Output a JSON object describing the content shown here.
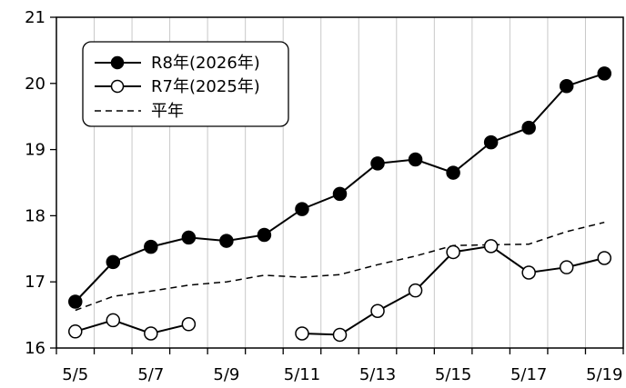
{
  "chart_data": {
    "type": "line",
    "x": [
      "5/5",
      "5/6",
      "5/7",
      "5/8",
      "5/9",
      "5/10",
      "5/11",
      "5/12",
      "5/13",
      "5/14",
      "5/15",
      "5/16",
      "5/17",
      "5/18",
      "5/19"
    ],
    "xticks": [
      "5/5",
      "5/7",
      "5/9",
      "5/11",
      "5/13",
      "5/15",
      "5/17",
      "5/19"
    ],
    "yticks": [
      "16",
      "17",
      "18",
      "19",
      "20",
      "21"
    ],
    "ylim": [
      16,
      21
    ],
    "grid": "vertical",
    "legend_position": "top-left",
    "series": [
      {
        "name": "R8年(2026年)",
        "style": "solid-filled-marker",
        "color": "#000000",
        "values": [
          16.7,
          17.3,
          17.53,
          17.67,
          17.62,
          17.71,
          18.1,
          18.33,
          18.79,
          18.85,
          18.65,
          19.11,
          19.33,
          19.96,
          20.15
        ]
      },
      {
        "name": "R7年(2025年)",
        "style": "solid-open-marker",
        "color": "#000000",
        "values": [
          16.25,
          16.42,
          16.22,
          16.36,
          null,
          null,
          16.22,
          16.2,
          16.56,
          16.87,
          17.45,
          17.54,
          17.14,
          17.22,
          17.36
        ]
      },
      {
        "name": "平年",
        "style": "dashed",
        "color": "#000000",
        "values": [
          16.57,
          16.78,
          16.86,
          16.95,
          17.0,
          17.1,
          17.07,
          17.11,
          17.26,
          17.39,
          17.55,
          17.56,
          17.57,
          17.76,
          17.9
        ]
      }
    ]
  }
}
